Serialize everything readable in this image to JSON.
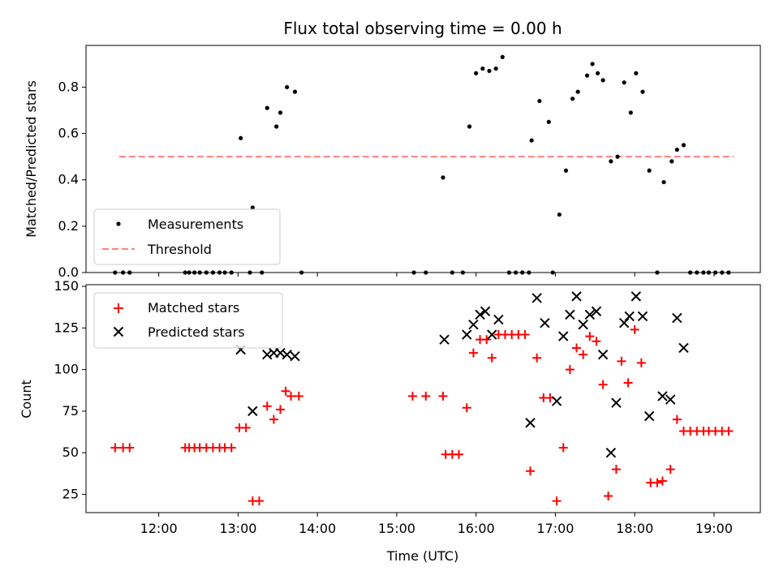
{
  "chart_data": [
    {
      "type": "scatter",
      "title": "Flux total observing time = 0.00 h",
      "ylabel": "Matched/Predicted stars",
      "xlim": [
        "11:05",
        "19:35"
      ],
      "ylim": [
        0,
        0.98
      ],
      "yticks": [
        "0.0",
        "0.2",
        "0.4",
        "0.6",
        "0.8"
      ],
      "legend": {
        "placement": "lower-left",
        "entries": [
          "Measurements",
          "Threshold"
        ]
      },
      "threshold": {
        "name": "Threshold",
        "value": 0.5,
        "x_range": [
          "11:30",
          "19:15"
        ],
        "color": "#ff8080"
      },
      "series": [
        {
          "name": "Measurements",
          "color": "#000000",
          "points": [
            [
              "11:27",
              0
            ],
            [
              "11:33",
              0
            ],
            [
              "11:38",
              0
            ],
            [
              "12:20",
              0
            ],
            [
              "12:23",
              0
            ],
            [
              "12:27",
              0
            ],
            [
              "12:31",
              0
            ],
            [
              "12:36",
              0
            ],
            [
              "12:41",
              0
            ],
            [
              "12:46",
              0
            ],
            [
              "12:50",
              0
            ],
            [
              "12:55",
              0
            ],
            [
              "13:02",
              0.58
            ],
            [
              "13:09",
              0
            ],
            [
              "13:11",
              0.28
            ],
            [
              "13:18",
              0
            ],
            [
              "13:22",
              0.71
            ],
            [
              "13:29",
              0.63
            ],
            [
              "13:32",
              0.69
            ],
            [
              "13:37",
              0.8
            ],
            [
              "13:43",
              0.78
            ],
            [
              "13:48",
              0
            ],
            [
              "15:13",
              0
            ],
            [
              "15:22",
              0
            ],
            [
              "15:35",
              0.41
            ],
            [
              "15:42",
              0
            ],
            [
              "15:50",
              0
            ],
            [
              "15:55",
              0.63
            ],
            [
              "16:00",
              0.86
            ],
            [
              "16:05",
              0.88
            ],
            [
              "16:10",
              0.87
            ],
            [
              "16:15",
              0.88
            ],
            [
              "16:20",
              0.93
            ],
            [
              "16:25",
              0
            ],
            [
              "16:30",
              0
            ],
            [
              "16:35",
              0
            ],
            [
              "16:40",
              0
            ],
            [
              "16:42",
              0.57
            ],
            [
              "16:48",
              0.74
            ],
            [
              "16:55",
              0.65
            ],
            [
              "16:58",
              0
            ],
            [
              "17:03",
              0.25
            ],
            [
              "17:08",
              0.44
            ],
            [
              "17:13",
              0.75
            ],
            [
              "17:17",
              0.78
            ],
            [
              "17:24",
              0.85
            ],
            [
              "17:28",
              0.9
            ],
            [
              "17:32",
              0.86
            ],
            [
              "17:36",
              0.83
            ],
            [
              "17:42",
              0.48
            ],
            [
              "17:47",
              0.5
            ],
            [
              "17:52",
              0.82
            ],
            [
              "17:57",
              0.69
            ],
            [
              "18:01",
              0.86
            ],
            [
              "18:06",
              0.78
            ],
            [
              "18:11",
              0.44
            ],
            [
              "18:17",
              0
            ],
            [
              "18:22",
              0.39
            ],
            [
              "18:28",
              0.48
            ],
            [
              "18:32",
              0.53
            ],
            [
              "18:37",
              0.55
            ],
            [
              "18:42",
              0
            ],
            [
              "18:47",
              0
            ],
            [
              "18:52",
              0
            ],
            [
              "18:56",
              0
            ],
            [
              "19:01",
              0
            ],
            [
              "19:06",
              0
            ],
            [
              "19:11",
              0
            ]
          ]
        }
      ]
    },
    {
      "type": "scatter",
      "xlabel": "Time (UTC)",
      "ylabel": "Count",
      "xlim": [
        "11:05",
        "19:35"
      ],
      "ylim": [
        14,
        151
      ],
      "yticks": [
        "25",
        "50",
        "75",
        "100",
        "125",
        "150"
      ],
      "xticks": [
        "12:00",
        "13:00",
        "14:00",
        "15:00",
        "16:00",
        "17:00",
        "18:00",
        "19:00"
      ],
      "legend": {
        "placement": "upper-left",
        "entries": [
          "Matched stars",
          "Predicted stars"
        ]
      },
      "series": [
        {
          "name": "Matched stars",
          "marker": "+",
          "color": "#ff0000",
          "points": [
            [
              "11:27",
              53
            ],
            [
              "11:33",
              53
            ],
            [
              "11:38",
              53
            ],
            [
              "12:20",
              53
            ],
            [
              "12:23",
              53
            ],
            [
              "12:27",
              53
            ],
            [
              "12:31",
              53
            ],
            [
              "12:36",
              53
            ],
            [
              "12:41",
              53
            ],
            [
              "12:46",
              53
            ],
            [
              "12:50",
              53
            ],
            [
              "12:55",
              53
            ],
            [
              "13:01",
              65
            ],
            [
              "13:06",
              65
            ],
            [
              "13:11",
              21
            ],
            [
              "13:16",
              21
            ],
            [
              "13:22",
              78
            ],
            [
              "13:27",
              70
            ],
            [
              "13:32",
              76
            ],
            [
              "13:36",
              87
            ],
            [
              "13:40",
              84
            ],
            [
              "13:46",
              84
            ],
            [
              "15:12",
              84
            ],
            [
              "15:22",
              84
            ],
            [
              "15:35",
              84
            ],
            [
              "15:37",
              49
            ],
            [
              "15:42",
              49
            ],
            [
              "15:47",
              49
            ],
            [
              "15:53",
              77
            ],
            [
              "15:58",
              110
            ],
            [
              "16:03",
              118
            ],
            [
              "16:08",
              118
            ],
            [
              "16:12",
              107
            ],
            [
              "16:17",
              121
            ],
            [
              "16:22",
              121
            ],
            [
              "16:27",
              121
            ],
            [
              "16:32",
              121
            ],
            [
              "16:37",
              121
            ],
            [
              "16:41",
              39
            ],
            [
              "16:46",
              107
            ],
            [
              "16:51",
              83
            ],
            [
              "16:56",
              83
            ],
            [
              "17:01",
              21
            ],
            [
              "17:06",
              53
            ],
            [
              "17:11",
              100
            ],
            [
              "17:16",
              113
            ],
            [
              "17:21",
              109
            ],
            [
              "17:26",
              120
            ],
            [
              "17:31",
              117
            ],
            [
              "17:36",
              91
            ],
            [
              "17:40",
              24
            ],
            [
              "17:46",
              40
            ],
            [
              "17:50",
              105
            ],
            [
              "17:55",
              92
            ],
            [
              "18:00",
              124
            ],
            [
              "18:05",
              104
            ],
            [
              "18:12",
              32
            ],
            [
              "18:17",
              32
            ],
            [
              "18:21",
              33
            ],
            [
              "18:27",
              40
            ],
            [
              "18:32",
              70
            ],
            [
              "18:37",
              63
            ],
            [
              "18:42",
              63
            ],
            [
              "18:47",
              63
            ],
            [
              "18:52",
              63
            ],
            [
              "18:56",
              63
            ],
            [
              "19:01",
              63
            ],
            [
              "19:06",
              63
            ],
            [
              "19:11",
              63
            ]
          ]
        },
        {
          "name": "Predicted stars",
          "marker": "x",
          "color": "#000000",
          "points": [
            [
              "13:02",
              112
            ],
            [
              "13:11",
              75
            ],
            [
              "13:22",
              109
            ],
            [
              "13:27",
              110
            ],
            [
              "13:32",
              110
            ],
            [
              "13:37",
              109
            ],
            [
              "13:43",
              108
            ],
            [
              "15:36",
              118
            ],
            [
              "15:53",
              121
            ],
            [
              "15:58",
              127
            ],
            [
              "16:03",
              133
            ],
            [
              "16:07",
              135
            ],
            [
              "16:12",
              121
            ],
            [
              "16:17",
              130
            ],
            [
              "16:41",
              68
            ],
            [
              "16:46",
              143
            ],
            [
              "16:52",
              128
            ],
            [
              "17:01",
              81
            ],
            [
              "17:06",
              120
            ],
            [
              "17:11",
              133
            ],
            [
              "17:16",
              144
            ],
            [
              "17:21",
              127
            ],
            [
              "17:26",
              133
            ],
            [
              "17:31",
              135
            ],
            [
              "17:36",
              109
            ],
            [
              "17:42",
              50
            ],
            [
              "17:46",
              80
            ],
            [
              "17:52",
              128
            ],
            [
              "17:56",
              132
            ],
            [
              "18:01",
              144
            ],
            [
              "18:06",
              132
            ],
            [
              "18:11",
              72
            ],
            [
              "18:21",
              84
            ],
            [
              "18:27",
              82
            ],
            [
              "18:32",
              131
            ],
            [
              "18:37",
              113
            ]
          ]
        }
      ]
    }
  ]
}
